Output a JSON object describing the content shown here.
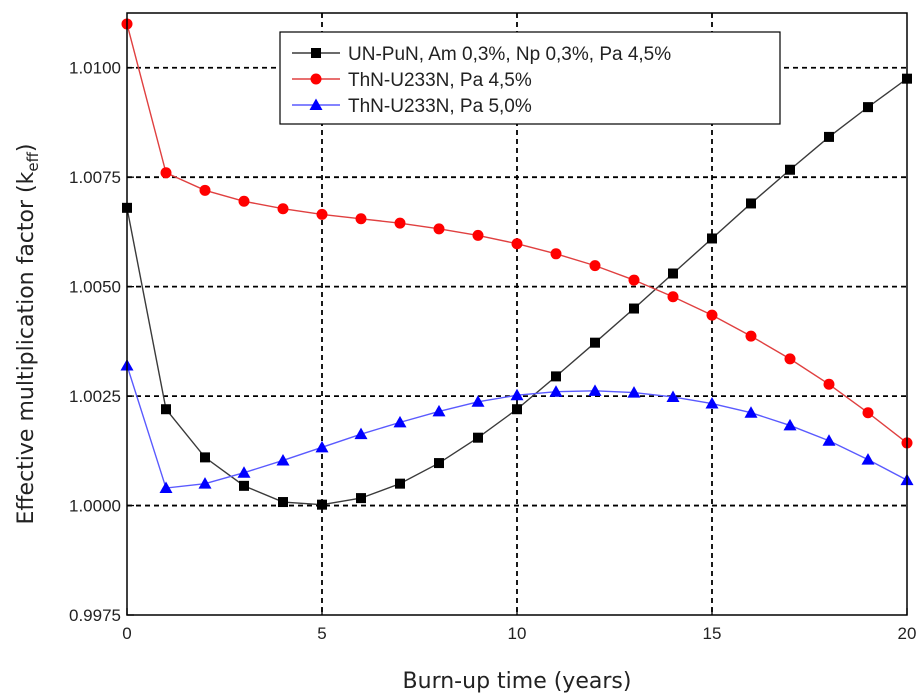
{
  "chart_data": {
    "type": "line",
    "title": "",
    "xlabel": "Burn-up time (years)",
    "ylabel": {
      "main": "Effective multiplication factor (k",
      "subscript": "eff",
      "close": ")"
    },
    "xlim": [
      0,
      20
    ],
    "ylim": [
      0.9975,
      1.01125
    ],
    "xticks": [
      0,
      5,
      10,
      15,
      20
    ],
    "xtick_labels": [
      "0",
      "5",
      "10",
      "15",
      "20"
    ],
    "yticks": [
      0.9975,
      1.0,
      1.0025,
      1.005,
      1.0075,
      1.01
    ],
    "ytick_labels": [
      "0.9975",
      "1.0000",
      "1.0025",
      "1.0050",
      "1.0075",
      "1.0100"
    ],
    "grid": "dashed black gridlines at each major tick",
    "legend_position": "top-right",
    "x": [
      0,
      1,
      2,
      3,
      4,
      5,
      6,
      7,
      8,
      9,
      10,
      11,
      12,
      13,
      14,
      15,
      16,
      17,
      18,
      19,
      20
    ],
    "series": [
      {
        "name": "UN-PuN, Am 0,3%, Np 0,3%, Pa 4,5%",
        "color": "#000000",
        "marker": "square",
        "values": [
          1.0068,
          1.0022,
          1.0011,
          1.00045,
          1.00008,
          1.00002,
          1.00017,
          1.0005,
          1.00097,
          1.00155,
          1.0022,
          1.00295,
          1.00372,
          1.0045,
          1.0053,
          1.0061,
          1.0069,
          1.00767,
          1.00842,
          1.0091,
          1.00975
        ]
      },
      {
        "name": "ThN-U233N, Pa 4,5%",
        "color": "#ff0000",
        "marker": "circle",
        "values": [
          1.011,
          1.0076,
          1.0072,
          1.00695,
          1.00678,
          1.00665,
          1.00655,
          1.00645,
          1.00632,
          1.00617,
          1.00598,
          1.00575,
          1.00548,
          1.00515,
          1.00477,
          1.00435,
          1.00387,
          1.00335,
          1.00277,
          1.00212,
          1.00143
        ]
      },
      {
        "name": "ThN-U233N, Pa 5,0%",
        "color": "#0000ff",
        "marker": "triangle",
        "values": [
          1.0032,
          1.0004,
          1.0005,
          1.00075,
          1.00103,
          1.00133,
          1.00163,
          1.0019,
          1.00215,
          1.00237,
          1.00252,
          1.0026,
          1.00262,
          1.00258,
          1.00248,
          1.00233,
          1.00212,
          1.00183,
          1.00148,
          1.00105,
          1.00058
        ]
      }
    ]
  }
}
